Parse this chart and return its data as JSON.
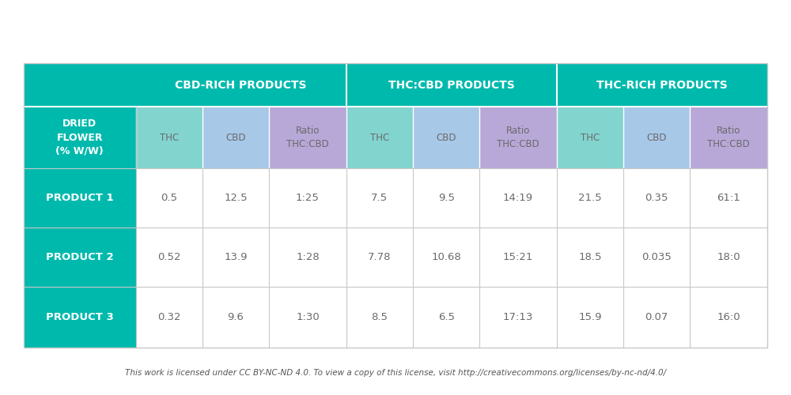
{
  "title_row": [
    "CBD-RICH PRODUCTS",
    "THC:CBD PRODUCTS",
    "THC-RICH PRODUCTS"
  ],
  "header_row_col0": "DRIED\nFLOWER\n(% W/W)",
  "header_labels": [
    "THC",
    "CBD",
    "Ratio\nTHC:CBD"
  ],
  "rows": [
    [
      "PRODUCT 1",
      "0.5",
      "12.5",
      "1:25",
      "7.5",
      "9.5",
      "14:19",
      "21.5",
      "0.35",
      "61:1"
    ],
    [
      "PRODUCT 2",
      "0.52",
      "13.9",
      "1:28",
      "7.78",
      "10.68",
      "15:21",
      "18.5",
      "0.035",
      "18:0"
    ],
    [
      "PRODUCT 3",
      "0.32",
      "9.6",
      "1:30",
      "8.5",
      "6.5",
      "17:13",
      "15.9",
      "0.07",
      "16:0"
    ]
  ],
  "colors": {
    "teal": "#00B9AD",
    "light_teal": "#82D4CF",
    "light_blue": "#A8C8E8",
    "light_purple": "#B8A8D8",
    "white": "#FFFFFF",
    "grid_line": "#C8C8C8",
    "text_dark": "#6A6A6A",
    "text_white": "#FFFFFF",
    "footer_text": "#555555",
    "bg": "#FFFFFF"
  },
  "footer": "This work is licensed under CC BY-NC-ND 4.0. To view a copy of this license, visit http://creativecommons.org/licenses/by-nc-nd/4.0/"
}
